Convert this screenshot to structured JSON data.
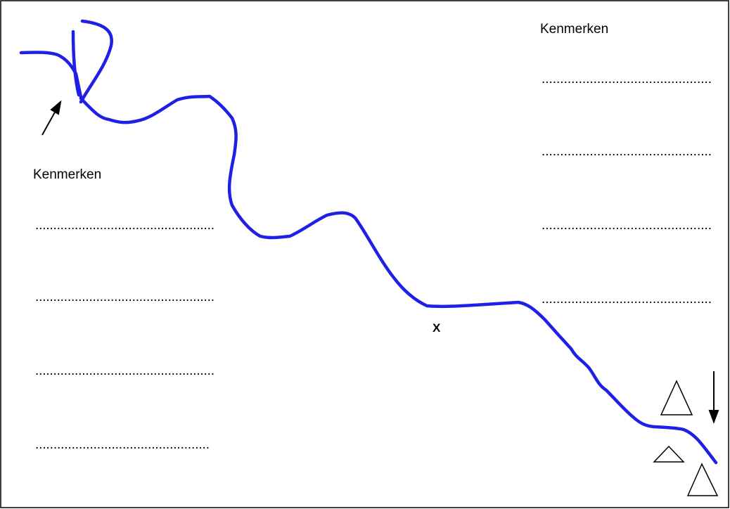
{
  "left": {
    "heading": "Kenmerken",
    "lines": [
      "..................................................",
      "..................................................",
      "..................................................",
      "................................................"
    ]
  },
  "right": {
    "heading": "Kenmerken",
    "lines": [
      "..............................................",
      "..............................................",
      "..............................................",
      ".............................................."
    ]
  },
  "marker": "X"
}
